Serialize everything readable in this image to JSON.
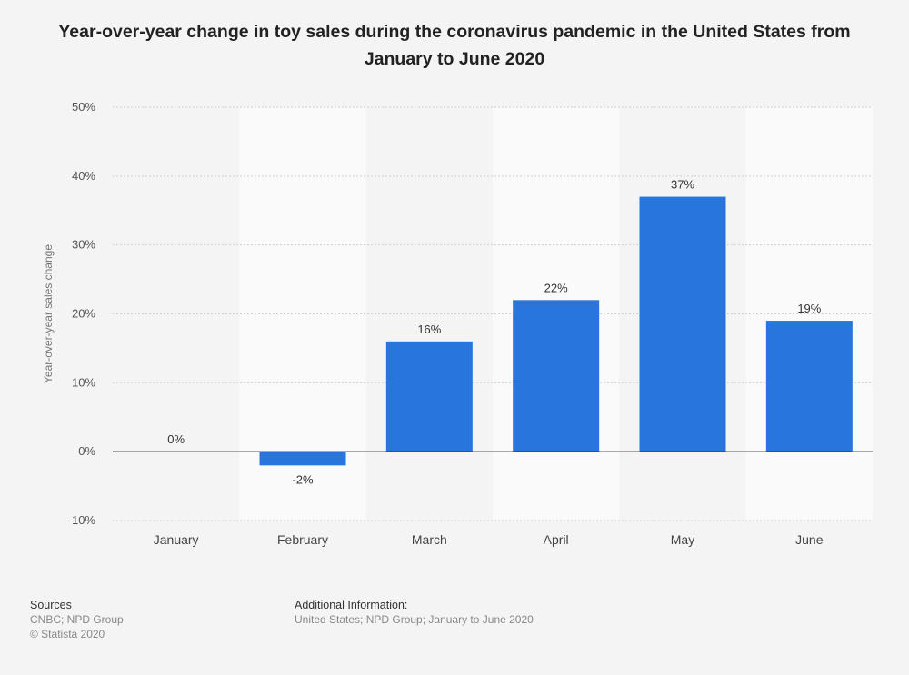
{
  "chart_data": {
    "type": "bar",
    "title": "Year-over-year change in toy sales during the coronavirus pandemic in the United States from January to June 2020",
    "ylabel": "Year-over-year sales change",
    "xlabel": "",
    "categories": [
      "January",
      "February",
      "March",
      "April",
      "May",
      "June"
    ],
    "values": [
      0,
      -2,
      16,
      22,
      37,
      19
    ],
    "data_labels": [
      "0%",
      "-2%",
      "16%",
      "22%",
      "37%",
      "19%"
    ],
    "ylim": [
      -10,
      50
    ],
    "yticks": [
      -10,
      0,
      10,
      20,
      30,
      40,
      50
    ],
    "ytick_labels": [
      "-10%",
      "0%",
      "10%",
      "20%",
      "30%",
      "40%",
      "50%"
    ],
    "grid": true,
    "bar_color": "#2775dd"
  },
  "footer": {
    "sources_heading": "Sources",
    "sources_line1": "CNBC; NPD Group",
    "sources_line2": "© Statista 2020",
    "additional_heading": "Additional Information:",
    "additional_text": "United States; NPD Group; January to June 2020"
  }
}
